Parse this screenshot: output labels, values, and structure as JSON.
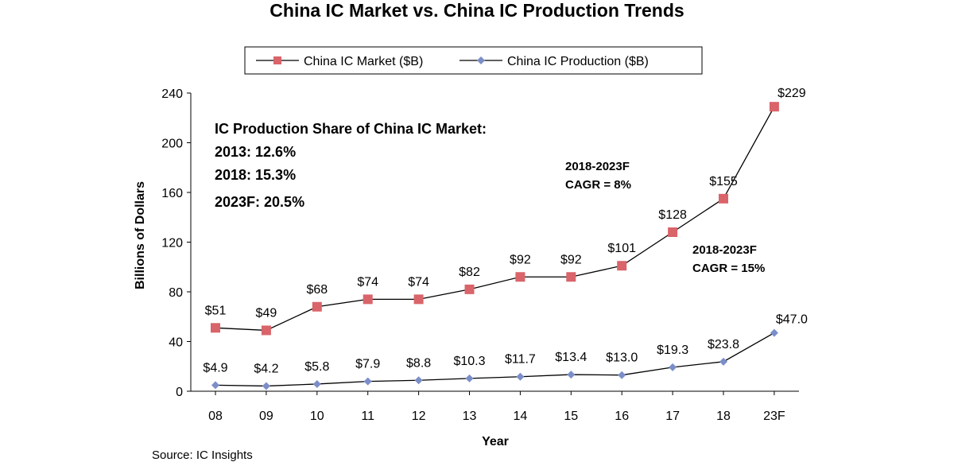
{
  "chart_data": {
    "type": "line",
    "title": "China IC Market vs. China IC Production Trends",
    "xlabel": "Year",
    "ylabel": "Billions of Dollars",
    "categories": [
      "08",
      "09",
      "10",
      "11",
      "12",
      "13",
      "14",
      "15",
      "16",
      "17",
      "18",
      "23F"
    ],
    "ylim": [
      0,
      240
    ],
    "yticks": [
      "0",
      "40",
      "80",
      "120",
      "160",
      "200",
      "240"
    ],
    "grid": false,
    "legend_position": "top",
    "series": [
      {
        "name": "China IC Market ($B)",
        "color": "#d9646a",
        "marker": "square",
        "values": [
          51,
          49,
          68,
          74,
          74,
          82,
          92,
          92,
          101,
          128,
          155,
          229
        ],
        "labels": [
          "$51",
          "$49",
          "$68",
          "$74",
          "$74",
          "$82",
          "$92",
          "$92",
          "$101",
          "$128",
          "$155",
          "$229"
        ]
      },
      {
        "name": "China IC Production ($B)",
        "color": "#7b8ec8",
        "marker": "diamond",
        "values": [
          4.9,
          4.2,
          5.8,
          7.9,
          8.8,
          10.3,
          11.7,
          13.4,
          13.0,
          19.3,
          23.8,
          47.0
        ],
        "labels": [
          "$4.9",
          "$4.2",
          "$5.8",
          "$7.9",
          "$8.8",
          "$10.3",
          "$11.7",
          "$13.4",
          "$13.0",
          "$19.3",
          "$23.8",
          "$47.0"
        ]
      }
    ],
    "annotations": {
      "share_title": "IC Production Share of China IC Market:",
      "share_2013": "2013: 12.6%",
      "share_2018": "2018: 15.3%",
      "share_2023": "2023F: 20.5%",
      "market_cagr_period": "2018-2023F",
      "market_cagr_value": "CAGR = 8%",
      "production_cagr_period": "2018-2023F",
      "production_cagr_value": "CAGR = 15%"
    },
    "source": "Source: IC Insights"
  }
}
